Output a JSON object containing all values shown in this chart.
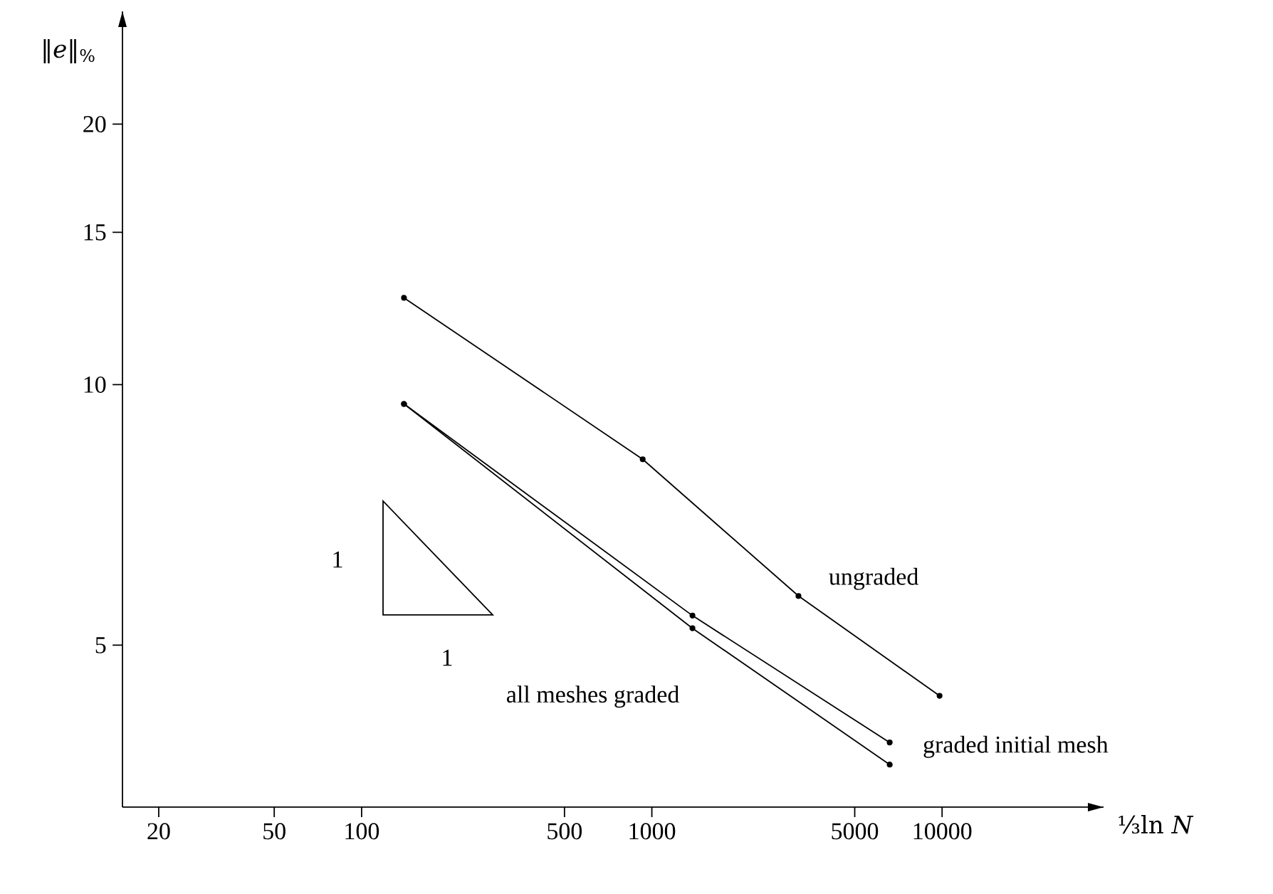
{
  "chart_data": {
    "type": "line",
    "xlabel": "⅓ln *N*",
    "ylabel": "‖*e*‖$_{%}$",
    "log": "xy",
    "x": [
      140,
      930,
      3200,
      9800
    ],
    "series": [
      {
        "name": "ungraded",
        "color": "#000000",
        "values": [
          12.6,
          8.2,
          5.7,
          4.37
        ]
      },
      {
        "name": "graded initial mesh",
        "color": "#000000",
        "x": [
          140,
          1380,
          6600
        ],
        "values": [
          9.5,
          5.41,
          3.86
        ]
      },
      {
        "name": "all meshes graded",
        "color": "#000000",
        "x": [
          140,
          1380,
          6600
        ],
        "values": [
          9.5,
          5.23,
          3.64
        ]
      }
    ],
    "xlim": [
      15,
      36000
    ],
    "ylim": [
      3.25,
      27
    ],
    "xticks": [
      20,
      50,
      100,
      500,
      1000,
      5000,
      10000
    ],
    "yticks": [
      5,
      10,
      15,
      20
    ],
    "marker": "circle",
    "line_style": "solid",
    "grid": false,
    "legend": false,
    "annotations": [
      "1",
      "1"
    ]
  }
}
